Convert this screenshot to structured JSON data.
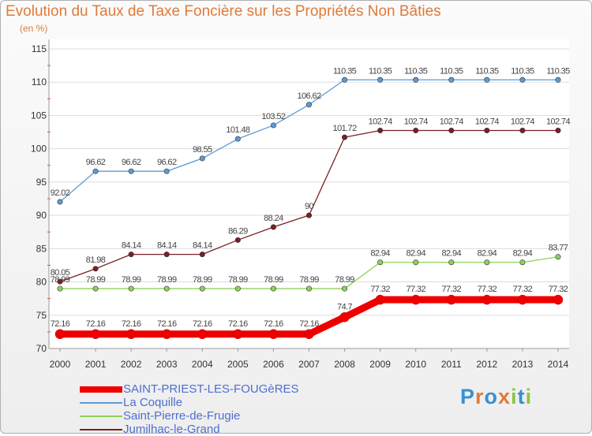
{
  "title": "Evolution du Taux de Taxe Foncière sur les Propriétés Non Bâties",
  "unit_label": "(en %)",
  "logo": {
    "text": "Proxiti",
    "colors": [
      "#3a8fd0",
      "#e07a38",
      "#3a8fd0",
      "#e07a38",
      "#8dc63f",
      "#3a8fd0",
      "#8dc63f"
    ]
  },
  "chart_data": {
    "type": "line",
    "title": "Evolution du Taux de Taxe Foncière sur les Propriétés Non Bâties",
    "ylabel": "(en %)",
    "xlabel": "",
    "ylim": [
      70,
      115
    ],
    "yticks": [
      70,
      75,
      80,
      85,
      90,
      95,
      100,
      105,
      110,
      115
    ],
    "grid": "horizontal",
    "legend_position": "bottom-left",
    "x": [
      "2000",
      "2001",
      "2002",
      "2003",
      "2004",
      "2005",
      "2006",
      "2007",
      "2008",
      "2009",
      "2010",
      "2011",
      "2012",
      "2013",
      "2014"
    ],
    "series": [
      {
        "name": "SAINT-PRIEST-LES-FOUGèRES",
        "color": "#ee0000",
        "emphasis": "thick",
        "values": [
          72.16,
          72.16,
          72.16,
          72.16,
          72.16,
          72.16,
          72.16,
          72.16,
          74.7,
          77.32,
          77.32,
          77.32,
          77.32,
          77.32,
          77.32
        ],
        "labels": [
          "72.16",
          "72.16",
          "72.16",
          "72.16",
          "72.16",
          "72.16",
          "72.16",
          "72.16",
          "74.7",
          "77.32",
          "77.32",
          "77.32",
          "77.32",
          "77.32",
          "77.32"
        ]
      },
      {
        "name": "La Coquille",
        "color": "#5b9bd5",
        "values": [
          92.02,
          96.62,
          96.62,
          96.62,
          98.55,
          101.48,
          103.52,
          106.62,
          110.35,
          110.35,
          110.35,
          110.35,
          110.35,
          110.35,
          110.35
        ],
        "labels": [
          "92.02",
          "96.62",
          "96.62",
          "96.62",
          "98.55",
          "101.48",
          "103.52",
          "106.62",
          "110.35",
          "110.35",
          "110.35",
          "110.35",
          "110.35",
          "110.35",
          "110.35"
        ]
      },
      {
        "name": "Saint-Pierre-de-Frugie",
        "color": "#8fd05a",
        "values": [
          78.99,
          78.99,
          78.99,
          78.99,
          78.99,
          78.99,
          78.99,
          78.99,
          78.99,
          82.94,
          82.94,
          82.94,
          82.94,
          82.94,
          83.77
        ],
        "labels": [
          "78.99",
          "78.99",
          "78.99",
          "78.99",
          "78.99",
          "78.99",
          "78.99",
          "78.99",
          "78.99",
          "82.94",
          "82.94",
          "82.94",
          "82.94",
          "82.94",
          "83.77"
        ]
      },
      {
        "name": "Jumilhac-le-Grand",
        "color": "#7b1e24",
        "values": [
          80.05,
          81.98,
          84.14,
          84.14,
          84.14,
          86.29,
          88.24,
          90,
          101.72,
          102.74,
          102.74,
          102.74,
          102.74,
          102.74,
          102.74
        ],
        "labels": [
          "80.05",
          "81.98",
          "84.14",
          "84.14",
          "84.14",
          "86.29",
          "88.24",
          "90",
          "101.72",
          "102.74",
          "102.74",
          "102.74",
          "102.74",
          "102.74",
          "102.74"
        ]
      }
    ]
  }
}
